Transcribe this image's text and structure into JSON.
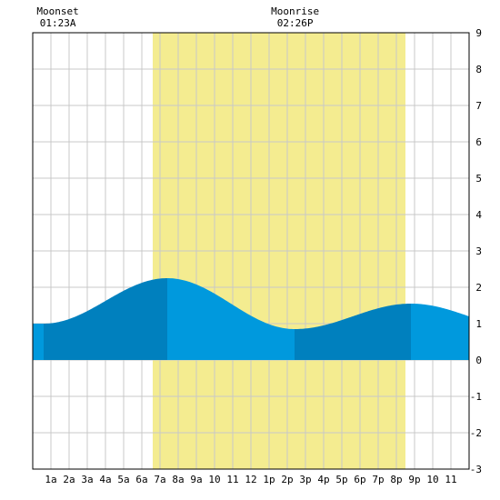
{
  "chart_data": {
    "type": "area",
    "title": "",
    "xlabel": "",
    "ylabel": "",
    "x_range": [
      0,
      24
    ],
    "ylim": [
      -3,
      9
    ],
    "yticks": [
      -3,
      -2,
      -1,
      0,
      1,
      2,
      3,
      4,
      5,
      6,
      7,
      8,
      9
    ],
    "x_tick_labels": [
      "1a",
      "2a",
      "3a",
      "4a",
      "5a",
      "6a",
      "7a",
      "8a",
      "9a",
      "10",
      "11",
      "12",
      "1p",
      "2p",
      "3p",
      "4p",
      "5p",
      "6p",
      "7p",
      "8p",
      "9p",
      "10",
      "11"
    ],
    "grid": true,
    "daylight": {
      "start_hour": 6.6,
      "end_hour": 20.5
    },
    "moon_events": [
      {
        "label": "Moonset",
        "time": "01:23A",
        "hour": 1.38
      },
      {
        "label": "Moonrise",
        "time": "02:26P",
        "hour": 14.43
      }
    ],
    "tide_extremes": [
      {
        "hour": 0.6,
        "height": 1.0
      },
      {
        "hour": 7.4,
        "height": 2.25
      },
      {
        "hour": 14.4,
        "height": 0.85
      },
      {
        "hour": 20.8,
        "height": 1.55
      }
    ],
    "end_heights": {
      "start": 1.0,
      "end": 1.3
    },
    "colors": {
      "daylight": "#f4ec90",
      "tide_light": "#0099dd",
      "tide_dark": "#0080be",
      "grid": "#c8c8c8",
      "border": "#000000"
    }
  }
}
